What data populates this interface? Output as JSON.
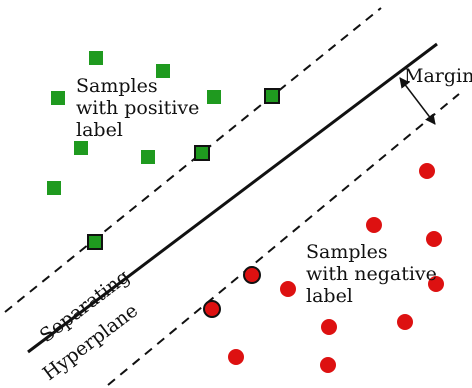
{
  "labels": {
    "positive_line1": "Samples",
    "positive_line2": "with positive",
    "positive_line3": "label",
    "negative_line1": "Samples",
    "negative_line2": "with negative",
    "negative_line3": "label",
    "margin": "Margin",
    "hyperplane_line1": "Separating",
    "hyperplane_line2": "Hyperplane"
  },
  "colors": {
    "positive": "#1f9a1f",
    "negative": "#dd1111",
    "line": "#111111",
    "support_vector_border": "#111111"
  }
}
